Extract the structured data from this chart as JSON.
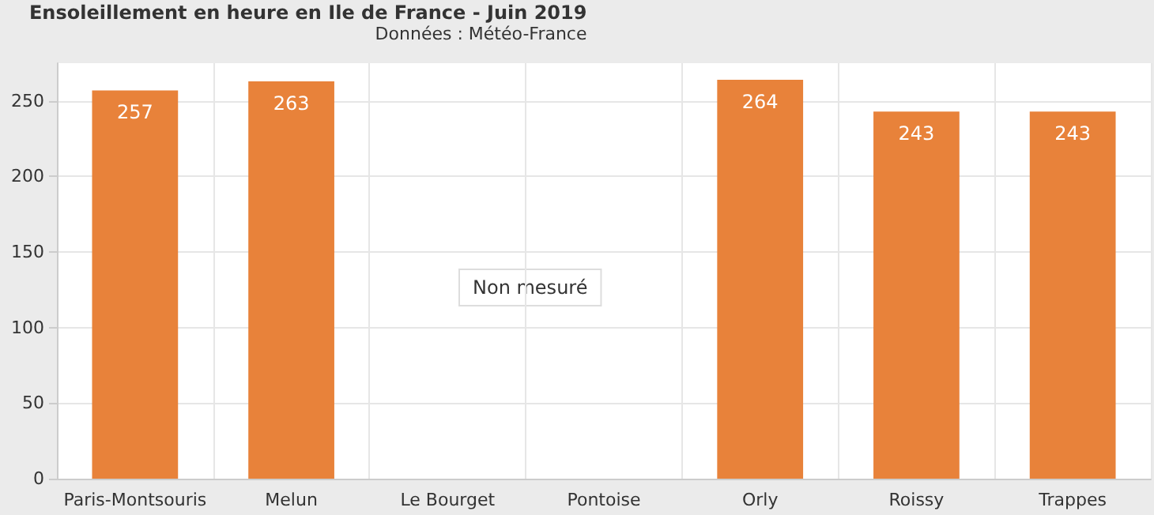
{
  "chart_data": {
    "type": "bar",
    "title": "Ensoleillement en heure en Ile de France - Juin 2019",
    "subtitle": "Données : Météo-France",
    "categories": [
      "Paris-Montsouris",
      "Melun",
      "Le Bourget",
      "Pontoise",
      "Orly",
      "Roissy",
      "Trappes"
    ],
    "values": [
      257,
      263,
      null,
      null,
      264,
      243,
      243
    ],
    "color": "#e8823a",
    "ylim": [
      0,
      275
    ],
    "yticks": [
      0,
      50,
      100,
      150,
      200,
      250
    ],
    "grid": true,
    "data_labels": true,
    "annotations": [
      "Non mesuré"
    ]
  }
}
